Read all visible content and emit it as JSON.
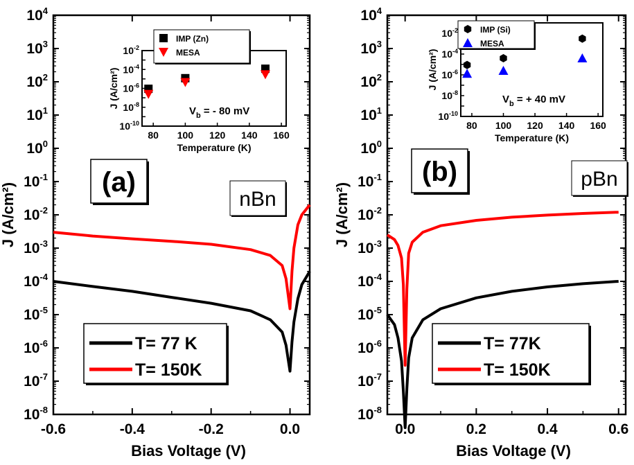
{
  "chart_data": [
    {
      "type": "line",
      "panel_label": "(a)",
      "device_label": "nBn",
      "xlabel": "Bias Voltage (V)",
      "ylabel": "J (A/cm²)",
      "xlim": [
        -0.6,
        0.05
      ],
      "ylim": [
        1e-08,
        10000
      ],
      "yscale": "log",
      "x_ticks": [
        "-0.6",
        "-0.4",
        "-0.2",
        "0.0"
      ],
      "legend_placement": "bottom-left",
      "series": [
        {
          "name": "T= 77 K",
          "color": "#000000",
          "x": [
            -0.6,
            -0.5,
            -0.4,
            -0.3,
            -0.2,
            -0.1,
            -0.05,
            -0.02,
            -0.01,
            0.0,
            0.005,
            0.01,
            0.02,
            0.03,
            0.05
          ],
          "y": [
            0.0001,
            7e-05,
            5e-05,
            3.3e-05,
            2.2e-05,
            1.3e-05,
            7e-06,
            3e-06,
            1.2e-06,
            2e-07,
            1.5e-06,
            6e-06,
            3e-05,
            8e-05,
            0.0002
          ]
        },
        {
          "name": "T= 150K",
          "color": "#ff0000",
          "x": [
            -0.6,
            -0.5,
            -0.4,
            -0.3,
            -0.2,
            -0.1,
            -0.05,
            -0.02,
            -0.01,
            0.0,
            0.005,
            0.01,
            0.02,
            0.03,
            0.05
          ],
          "y": [
            0.003,
            0.0023,
            0.0019,
            0.0016,
            0.0013,
            0.0009,
            0.0006,
            0.0003,
            0.00012,
            1.5e-05,
            0.0002,
            0.001,
            0.005,
            0.01,
            0.02
          ]
        }
      ],
      "inset": {
        "xlabel": "Temperature (K)",
        "ylabel": "J (A/cm²)",
        "xlim": [
          73,
          163
        ],
        "ylim": [
          1e-10,
          0.01
        ],
        "yscale": "log",
        "x_ticks": [
          "80",
          "100",
          "120",
          "140",
          "160"
        ],
        "annotation": "- 80 mV",
        "series": [
          {
            "name": "IMP (Zn)",
            "marker": "square",
            "color": "#000000",
            "x": [
              77,
              100,
              150
            ],
            "y": [
              9e-07,
              1.2e-05,
              0.00012
            ]
          },
          {
            "name": "MESA",
            "marker": "triangle-down",
            "color": "#ff0000",
            "x": [
              77,
              100,
              150
            ],
            "y": [
              2.5e-07,
              4.5e-06,
              3e-05
            ]
          }
        ]
      }
    },
    {
      "type": "line",
      "panel_label": "(b)",
      "device_label": "pBn",
      "xlabel": "Bias Voltage (V)",
      "ylabel": "J (A/cm²)",
      "xlim": [
        -0.05,
        0.62
      ],
      "ylim": [
        1e-08,
        10000
      ],
      "yscale": "log",
      "x_ticks": [
        "0.0",
        "0.2",
        "0.4",
        "0.6"
      ],
      "legend_placement": "bottom-right",
      "series": [
        {
          "name": "T= 77K",
          "color": "#000000",
          "x": [
            -0.05,
            -0.03,
            -0.02,
            -0.01,
            -0.005,
            0.0,
            0.005,
            0.01,
            0.02,
            0.05,
            0.1,
            0.2,
            0.3,
            0.4,
            0.5,
            0.6
          ],
          "y": [
            1e-05,
            5e-06,
            2e-06,
            4e-07,
            5e-08,
            4e-09,
            6e-08,
            5e-07,
            2e-06,
            7e-06,
            1.5e-05,
            3.2e-05,
            5e-05,
            6.8e-05,
            8.5e-05,
            0.0001
          ]
        },
        {
          "name": "T= 150K",
          "color": "#ff0000",
          "x": [
            -0.05,
            -0.03,
            -0.02,
            -0.01,
            -0.005,
            0.0,
            0.005,
            0.01,
            0.02,
            0.05,
            0.1,
            0.2,
            0.3,
            0.4,
            0.5,
            0.6
          ],
          "y": [
            0.0025,
            0.0018,
            0.0012,
            0.0005,
            8e-05,
            3e-07,
            6e-05,
            0.0007,
            0.0015,
            0.003,
            0.0047,
            0.0068,
            0.0085,
            0.0098,
            0.011,
            0.012
          ]
        }
      ],
      "inset": {
        "xlabel": "Temperature (K)",
        "ylabel": "J (A/cm²)",
        "xlim": [
          73,
          163
        ],
        "ylim": [
          1e-10,
          0.1
        ],
        "yscale": "log",
        "x_ticks": [
          "80",
          "100",
          "120",
          "140",
          "160"
        ],
        "annotation": "+ 40 mV",
        "series": [
          {
            "name": "IMP (Si)",
            "marker": "hexagon",
            "color": "#000000",
            "x": [
              77,
              100,
              150
            ],
            "y": [
              9e-06,
              4e-05,
              0.003
            ]
          },
          {
            "name": "MESA",
            "marker": "triangle-up",
            "color": "#0000ff",
            "x": [
              77,
              100,
              150
            ],
            "y": [
              1.3e-06,
              2.5e-06,
              4e-05
            ]
          }
        ]
      }
    }
  ]
}
